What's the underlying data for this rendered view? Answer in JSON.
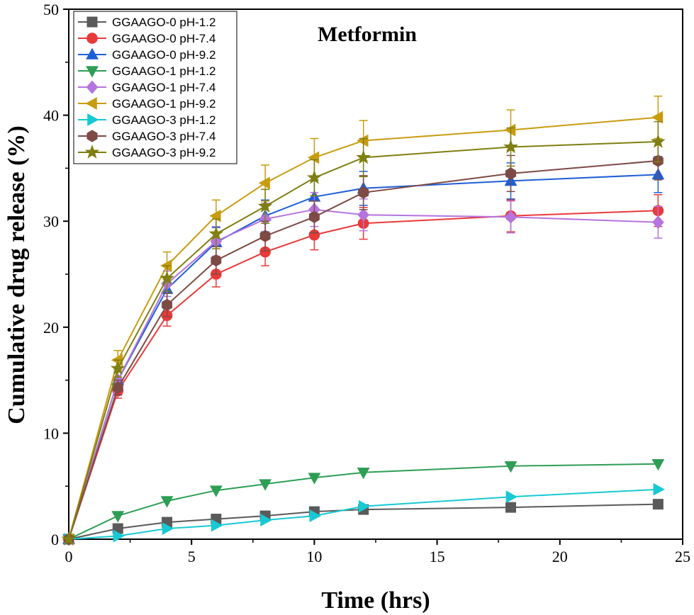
{
  "chart_data": {
    "type": "line",
    "title": "Metformin",
    "xlabel": "Time (hrs)",
    "ylabel": "Cumulative drug release (%)",
    "xlim": [
      0,
      25
    ],
    "ylim": [
      0,
      50
    ],
    "xticks": [
      0,
      5,
      10,
      15,
      20,
      25
    ],
    "yticks": [
      0,
      10,
      20,
      30,
      40,
      50
    ],
    "grid": false,
    "legend_position": "top-left",
    "x": [
      0,
      2,
      4,
      6,
      8,
      10,
      12,
      18,
      24
    ],
    "series": [
      {
        "name": "GGAAGO-0 pH-1.2",
        "color": "#5a5a5a",
        "marker": "square",
        "values": [
          0,
          1.0,
          1.6,
          1.9,
          2.2,
          2.6,
          2.8,
          3.0,
          3.3
        ],
        "errors": [
          0,
          0,
          0,
          0,
          0,
          0,
          0,
          0,
          0
        ]
      },
      {
        "name": "GGAAGO-0 pH-7.4",
        "color": "#e83a3a",
        "marker": "circle",
        "values": [
          0,
          14.0,
          21.1,
          25.0,
          27.1,
          28.7,
          29.8,
          30.5,
          31.0
        ],
        "errors": [
          0,
          0.7,
          1.0,
          1.2,
          1.3,
          1.4,
          1.5,
          1.5,
          1.5
        ]
      },
      {
        "name": "GGAAGO-0 pH-9.2",
        "color": "#1f5fd6",
        "marker": "triangle-up",
        "values": [
          0,
          15.0,
          23.6,
          28.0,
          30.5,
          32.3,
          33.1,
          33.8,
          34.4
        ],
        "errors": [
          0,
          0.8,
          1.2,
          1.4,
          1.5,
          1.6,
          1.6,
          1.7,
          1.7
        ]
      },
      {
        "name": "GGAAGO-1 pH-1.2",
        "color": "#2e9e55",
        "marker": "triangle-down",
        "values": [
          0,
          2.2,
          3.6,
          4.6,
          5.2,
          5.8,
          6.3,
          6.9,
          7.1
        ],
        "errors": [
          0,
          0,
          0,
          0,
          0,
          0,
          0,
          0,
          0
        ]
      },
      {
        "name": "GGAAGO-1 pH-7.4",
        "color": "#b574de",
        "marker": "diamond",
        "values": [
          0,
          15.0,
          24.1,
          28.1,
          30.2,
          31.1,
          30.6,
          30.4,
          29.9
        ],
        "errors": [
          0,
          0.8,
          1.2,
          1.4,
          1.5,
          1.6,
          1.5,
          1.5,
          1.5
        ]
      },
      {
        "name": "GGAAGO-1 pH-9.2",
        "color": "#c89c0f",
        "marker": "triangle-left",
        "values": [
          0,
          16.9,
          25.8,
          30.5,
          33.6,
          36.0,
          37.6,
          38.6,
          39.8
        ],
        "errors": [
          0,
          0.9,
          1.3,
          1.5,
          1.7,
          1.8,
          1.9,
          1.9,
          2.0
        ]
      },
      {
        "name": "GGAAGO-3 pH-1.2",
        "color": "#17c9d4",
        "marker": "triangle-right",
        "values": [
          0,
          0.3,
          1.0,
          1.3,
          1.8,
          2.2,
          3.1,
          4.0,
          4.7
        ],
        "errors": [
          0,
          0,
          0,
          0,
          0,
          0,
          0,
          0,
          0
        ]
      },
      {
        "name": "GGAAGO-3 pH-7.4",
        "color": "#7e4a45",
        "marker": "hexagon",
        "values": [
          0,
          14.3,
          22.1,
          26.3,
          28.6,
          30.4,
          32.7,
          34.5,
          35.7
        ],
        "errors": [
          0,
          0.7,
          1.1,
          1.3,
          1.4,
          1.5,
          1.6,
          1.7,
          1.8
        ]
      },
      {
        "name": "GGAAGO-3 pH-9.2",
        "color": "#7f7f12",
        "marker": "star",
        "values": [
          0,
          16.1,
          24.6,
          28.8,
          31.4,
          34.1,
          36.0,
          37.0,
          37.5
        ],
        "errors": [
          0,
          0.8,
          1.2,
          1.4,
          1.6,
          1.7,
          1.8,
          1.8,
          1.9
        ]
      }
    ]
  }
}
